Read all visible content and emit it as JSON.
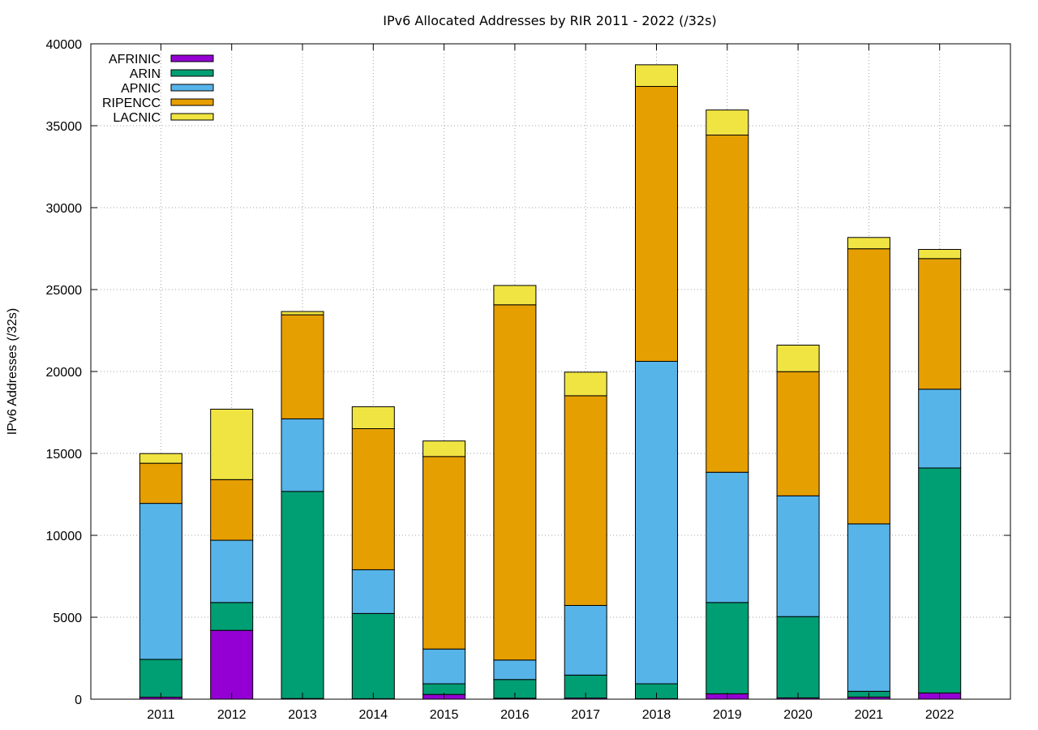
{
  "chart_data": {
    "type": "bar",
    "stacked": true,
    "title": "IPv6 Allocated Addresses by RIR 2011 - 2022 (/32s)",
    "xlabel": "",
    "ylabel": "IPv6 Addresses (/32s)",
    "ylim": [
      0,
      40000
    ],
    "yticks": [
      "0",
      "5000",
      "10000",
      "15000",
      "20000",
      "25000",
      "30000",
      "35000",
      "40000"
    ],
    "grid": true,
    "legend_position": "top-left",
    "categories": [
      "2011",
      "2012",
      "2013",
      "2014",
      "2015",
      "2016",
      "2017",
      "2018",
      "2019",
      "2020",
      "2021",
      "2022"
    ],
    "series": [
      {
        "name": "AFRINIC",
        "color": "#9400d3",
        "values": [
          120,
          4200,
          40,
          30,
          290,
          60,
          70,
          30,
          330,
          80,
          130,
          380
        ]
      },
      {
        "name": "ARIN",
        "color": "#009e73",
        "values": [
          2310,
          1700,
          12640,
          5200,
          650,
          1140,
          1400,
          910,
          5570,
          4960,
          350,
          13730
        ]
      },
      {
        "name": "APNIC",
        "color": "#56b4e9",
        "values": [
          9520,
          3800,
          4430,
          2670,
          2120,
          1190,
          4250,
          19680,
          7950,
          7370,
          10220,
          4810
        ]
      },
      {
        "name": "RIPENCC",
        "color": "#e69f00",
        "values": [
          2450,
          3700,
          6350,
          8610,
          11750,
          21680,
          12800,
          16780,
          20580,
          7580,
          16790,
          7970
        ]
      },
      {
        "name": "LACNIC",
        "color": "#f0e442",
        "values": [
          590,
          4300,
          200,
          1340,
          950,
          1180,
          1440,
          1320,
          1530,
          1620,
          690,
          560
        ]
      }
    ]
  }
}
